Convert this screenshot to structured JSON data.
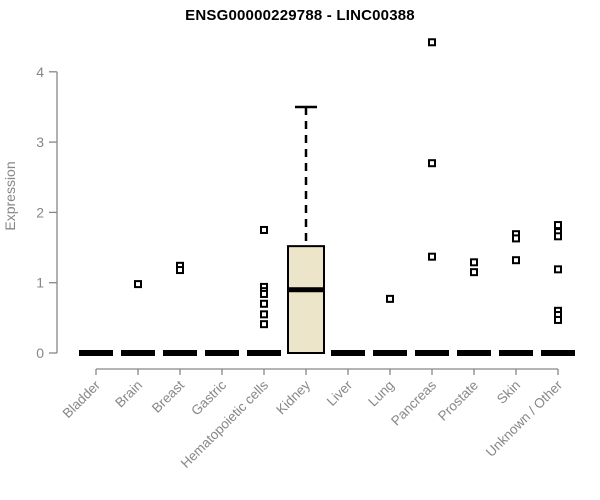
{
  "chart_data": {
    "type": "box",
    "title": "ENSG00000229788 - LINC00388",
    "ylabel": "Expression",
    "ylim": [
      0,
      4
    ],
    "yticks": [
      0,
      1,
      2,
      3,
      4
    ],
    "grid": false,
    "legend": null,
    "categories": [
      "Bladder",
      "Brain",
      "Breast",
      "Gastric",
      "Hematopoietic cells",
      "Kidney",
      "Liver",
      "Lung",
      "Pancreas",
      "Prostate",
      "Skin",
      "Unknown / Other"
    ],
    "series": [
      {
        "name": "Bladder",
        "median": 0,
        "q1": 0,
        "q3": 0,
        "whisker_low": 0,
        "whisker_high": 0,
        "points": []
      },
      {
        "name": "Brain",
        "median": 0,
        "q1": 0,
        "q3": 0,
        "whisker_low": 0,
        "whisker_high": 0,
        "points": [
          0.98
        ]
      },
      {
        "name": "Breast",
        "median": 0,
        "q1": 0,
        "q3": 0,
        "whisker_low": 0,
        "whisker_high": 0,
        "points": [
          1.24,
          1.18
        ]
      },
      {
        "name": "Gastric",
        "median": 0,
        "q1": 0,
        "q3": 0,
        "whisker_low": 0,
        "whisker_high": 0,
        "points": []
      },
      {
        "name": "Hematopoietic cells",
        "median": 0,
        "q1": 0,
        "q3": 0,
        "whisker_low": 0,
        "whisker_high": 0,
        "points": [
          1.75,
          0.94,
          0.88,
          0.84,
          0.7,
          0.55,
          0.41
        ]
      },
      {
        "name": "Kidney",
        "median": 0.9,
        "q1": 0,
        "q3": 1.52,
        "whisker_low": 0,
        "whisker_high": 3.5,
        "points": []
      },
      {
        "name": "Liver",
        "median": 0,
        "q1": 0,
        "q3": 0,
        "whisker_low": 0,
        "whisker_high": 0,
        "points": []
      },
      {
        "name": "Lung",
        "median": 0,
        "q1": 0,
        "q3": 0,
        "whisker_low": 0,
        "whisker_high": 0,
        "points": [
          0.77
        ]
      },
      {
        "name": "Pancreas",
        "median": 0,
        "q1": 0,
        "q3": 0,
        "whisker_low": 0,
        "whisker_high": 0,
        "points": [
          4.42,
          2.7,
          1.37
        ]
      },
      {
        "name": "Prostate",
        "median": 0,
        "q1": 0,
        "q3": 0,
        "whisker_low": 0,
        "whisker_high": 0,
        "points": [
          1.29,
          1.15
        ]
      },
      {
        "name": "Skin",
        "median": 0,
        "q1": 0,
        "q3": 0,
        "whisker_low": 0,
        "whisker_high": 0,
        "points": [
          1.69,
          1.63,
          1.32
        ]
      },
      {
        "name": "Unknown / Other",
        "median": 0,
        "q1": 0,
        "q3": 0,
        "whisker_low": 0,
        "whisker_high": 0,
        "points": [
          1.82,
          1.72,
          1.66,
          1.19,
          0.6,
          0.54,
          0.47
        ]
      }
    ]
  },
  "colors": {
    "box_fill": "#ece5c9",
    "box_stroke": "#000000",
    "median_color": "#000000",
    "point_stroke": "#000000",
    "point_fill": "#ffffff",
    "axis_color": "#878787",
    "title_color": "#000000"
  }
}
